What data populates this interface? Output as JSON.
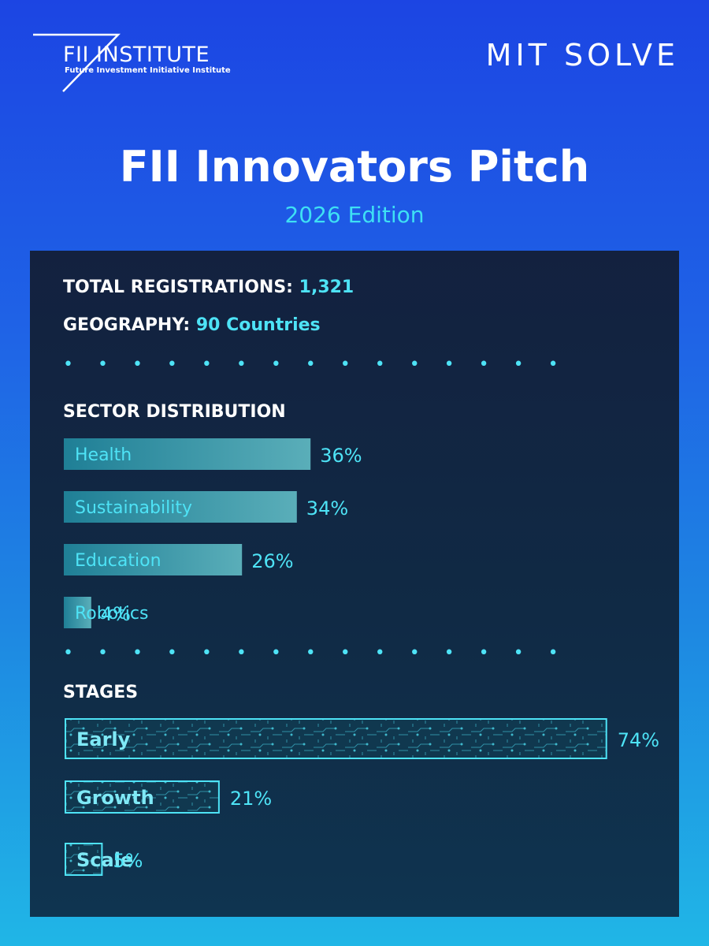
{
  "logos": {
    "fii_title": "FII INSTITUTE",
    "fii_subtitle": "Future Investment Initiative Institute",
    "mit": "MIT SOLVE"
  },
  "header": {
    "title": "FII Innovators Pitch",
    "edition": "2026 Edition"
  },
  "stats": {
    "registrations_label": "TOTAL REGISTRATIONS:",
    "registrations_value": "1,321",
    "geography_label": "GEOGRAPHY:",
    "geography_value": "90 Countries"
  },
  "colors": {
    "accent": "#4ee3f6",
    "panel": "#13213f",
    "bar_fill": "#2a8a9e"
  },
  "chart_data": [
    {
      "type": "bar",
      "title": "SECTOR DISTRIBUTION",
      "categories": [
        "Health",
        "Sustainability",
        "Education",
        "Robotics"
      ],
      "values": [
        36,
        34,
        26,
        4
      ],
      "labels": [
        "36%",
        "34%",
        "26%",
        "4%"
      ],
      "unit": "%"
    },
    {
      "type": "bar",
      "title": "STAGES",
      "categories": [
        "Early",
        "Growth",
        "Scale"
      ],
      "values": [
        74,
        21,
        5
      ],
      "labels": [
        "74%",
        "21%",
        "5%"
      ],
      "unit": "%"
    }
  ]
}
